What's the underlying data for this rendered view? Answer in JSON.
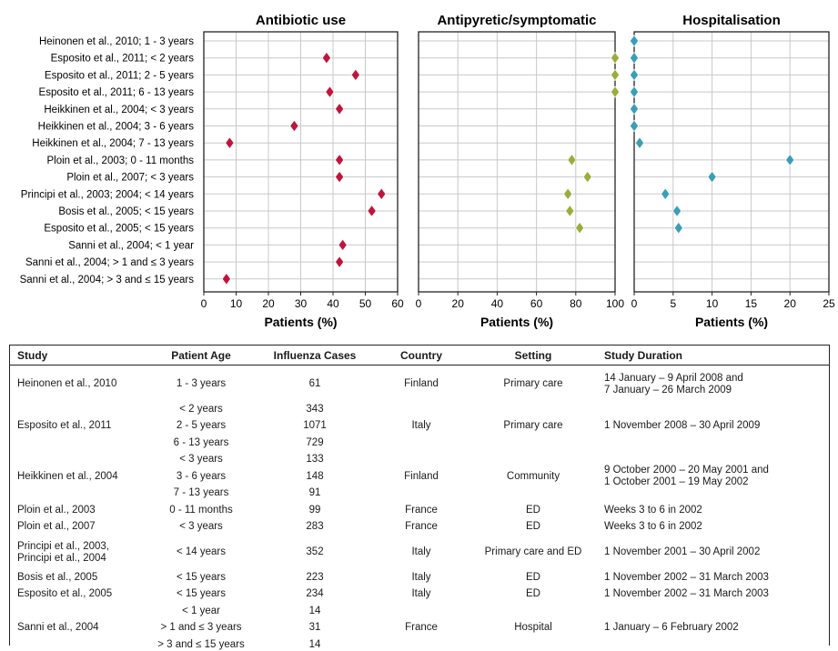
{
  "chart_data": [
    {
      "type": "scatter",
      "title": "Antibiotic use",
      "xlabel": "Patients (%)",
      "xlim": [
        0,
        60
      ],
      "xticks": [
        0,
        10,
        20,
        30,
        40,
        50,
        60
      ],
      "color": "#c0143c",
      "categories": [
        "Heinonen et al., 2010; 1 - 3 years",
        "Esposito et al., 2011; < 2 years",
        "Esposito et al., 2011; 2 - 5 years",
        "Esposito et al., 2011; 6 - 13 years",
        "Heikkinen et al., 2004; < 3 years",
        "Heikkinen et al., 2004; 3 - 6 years",
        "Heikkinen et al., 2004; 7 - 13 years",
        "Ploin et al., 2003; 0 - 11 months",
        "Ploin et al., 2007; < 3 years",
        "Principi et al., 2003; 2004; < 14 years",
        "Bosis et al., 2005; < 15 years",
        "Esposito et al., 2005; < 15 years",
        "Sanni et al., 2004; < 1 year",
        "Sanni et al., 2004; > 1 and  ≤ 3 years",
        "Sanni et al., 2004; > 3 and  ≤ 15 years"
      ],
      "values": [
        null,
        38,
        47,
        39,
        42,
        28,
        8,
        42,
        42,
        55,
        52,
        null,
        43,
        42,
        7
      ]
    },
    {
      "type": "scatter",
      "title": "Antipyretic/symptomatic",
      "xlabel": "Patients (%)",
      "xlim": [
        0,
        100
      ],
      "xticks": [
        0,
        20,
        40,
        60,
        80,
        100
      ],
      "color": "#9aad3c",
      "values": [
        null,
        100,
        100,
        100,
        null,
        null,
        null,
        78,
        86,
        76,
        77,
        82,
        null,
        null,
        null
      ]
    },
    {
      "type": "scatter",
      "title": "Hospitalisation",
      "xlabel": "Patients (%)",
      "xlim": [
        0,
        25
      ],
      "xticks": [
        0,
        5,
        10,
        15,
        20,
        25
      ],
      "color": "#3a9fb5",
      "values": [
        0,
        0,
        0,
        0,
        0,
        0,
        0.7,
        20,
        10,
        4,
        5.5,
        5.7,
        null,
        null,
        null
      ]
    }
  ],
  "table": {
    "headers": [
      "Study",
      "Patient Age",
      "Influenza Cases",
      "Country",
      "Setting",
      "Study Duration"
    ],
    "rows": [
      {
        "study": "Heinonen et al., 2010",
        "ages": [
          "1 - 3 years"
        ],
        "cases": [
          "61"
        ],
        "country": "Finland",
        "setting": "Primary care",
        "duration": "14 January – 9 April 2008 and\n7 January – 26 March 2009"
      },
      {
        "study": "Esposito et al., 2011",
        "ages": [
          "< 2 years",
          "2 - 5 years",
          "6 - 13 years"
        ],
        "cases": [
          "343",
          "1071",
          "729"
        ],
        "country": "Italy",
        "setting": "Primary care",
        "duration": "1 November 2008 – 30 April 2009"
      },
      {
        "study": "Heikkinen et al., 2004",
        "ages": [
          "< 3 years",
          "3 - 6 years",
          "7 - 13 years"
        ],
        "cases": [
          "133",
          "148",
          "91"
        ],
        "country": "Finland",
        "setting": "Community",
        "duration": "9 October 2000 – 20 May 2001 and\n1 October 2001 – 19 May 2002"
      },
      {
        "study": "Ploin et al., 2003",
        "ages": [
          "0 - 11 months"
        ],
        "cases": [
          "99"
        ],
        "country": "France",
        "setting": "ED",
        "duration": "Weeks 3 to 6 in 2002"
      },
      {
        "study": "Ploin et al., 2007",
        "ages": [
          "< 3 years"
        ],
        "cases": [
          "283"
        ],
        "country": "France",
        "setting": "ED",
        "duration": "Weeks 3 to 6 in 2002"
      },
      {
        "study": "Principi et al., 2003,\nPrincipi et al., 2004",
        "ages": [
          "< 14 years"
        ],
        "cases": [
          "352"
        ],
        "country": "Italy",
        "setting": "Primary care and ED",
        "duration": "1 November 2001 – 30 April 2002"
      },
      {
        "study": "Bosis et al., 2005",
        "ages": [
          "< 15 years"
        ],
        "cases": [
          "223"
        ],
        "country": "Italy",
        "setting": "ED",
        "duration": "1 November 2002 – 31 March 2003"
      },
      {
        "study": "Esposito et al., 2005",
        "ages": [
          "< 15 years"
        ],
        "cases": [
          "234"
        ],
        "country": "Italy",
        "setting": "ED",
        "duration": "1 November 2002 – 31 March 2003"
      },
      {
        "study": "Sanni et al., 2004",
        "ages": [
          "< 1 year",
          "> 1 and  ≤ 3 years",
          "> 3 and  ≤ 15 years"
        ],
        "cases": [
          "14",
          "31",
          "14"
        ],
        "country": "France",
        "setting": "Hospital",
        "duration": "1 January – 6 February 2002"
      }
    ]
  }
}
